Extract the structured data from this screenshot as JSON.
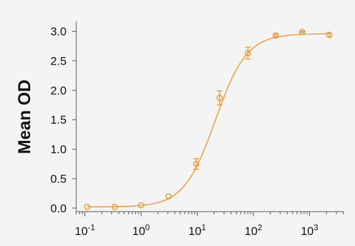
{
  "chart_data": {
    "type": "scatter",
    "xscale": "log",
    "xlim": [
      0.07,
      4000
    ],
    "ylim": [
      -0.06,
      3.1
    ],
    "xticks": [
      {
        "value": 0.1,
        "base": "10",
        "exp": "-1"
      },
      {
        "value": 1,
        "base": "10",
        "exp": "0"
      },
      {
        "value": 10,
        "base": "10",
        "exp": "1"
      },
      {
        "value": 100,
        "base": "10",
        "exp": "2"
      },
      {
        "value": 1000,
        "base": "10",
        "exp": "3"
      }
    ],
    "yticks": [
      {
        "value": 0.0,
        "label": "0.0"
      },
      {
        "value": 0.5,
        "label": "0.5"
      },
      {
        "value": 1.0,
        "label": "1.0"
      },
      {
        "value": 1.5,
        "label": "1.5"
      },
      {
        "value": 2.0,
        "label": "2.0"
      },
      {
        "value": 2.5,
        "label": "2.5"
      },
      {
        "value": 3.0,
        "label": "3.0"
      }
    ],
    "xlabel": "",
    "ylabel": "Mean OD",
    "grid": false,
    "color": "#f0962e",
    "series": [
      {
        "points": [
          {
            "x": 0.11,
            "y": 0.02,
            "err": 0.0
          },
          {
            "x": 0.34,
            "y": 0.02,
            "err": 0.0
          },
          {
            "x": 1.0,
            "y": 0.05,
            "err": 0.0
          },
          {
            "x": 3.1,
            "y": 0.2,
            "err": 0.0
          },
          {
            "x": 9.6,
            "y": 0.75,
            "err": 0.09
          },
          {
            "x": 25,
            "y": 1.87,
            "err": 0.12
          },
          {
            "x": 80,
            "y": 2.63,
            "err": 0.1
          },
          {
            "x": 250,
            "y": 2.93,
            "err": 0.02
          },
          {
            "x": 740,
            "y": 2.99,
            "err": 0.01
          },
          {
            "x": 2250,
            "y": 2.94,
            "err": 0.03
          }
        ],
        "fit": {
          "bottom": 0.02,
          "top": 2.96,
          "ec50": 21,
          "hill": 1.55
        }
      }
    ]
  }
}
